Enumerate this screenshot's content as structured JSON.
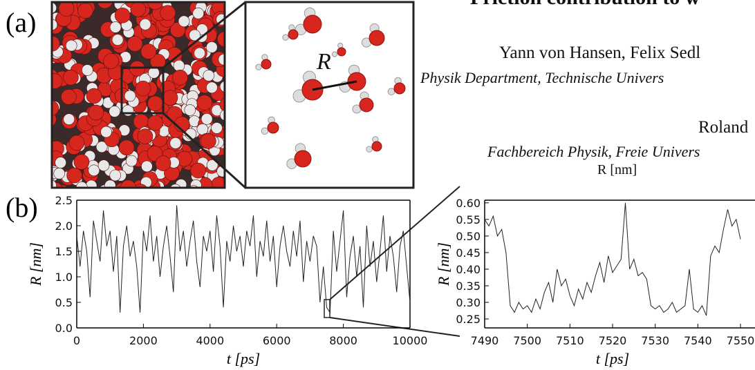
{
  "panel_labels": [
    "(a)",
    "(b)"
  ],
  "figure_a": {
    "distance_label": "R"
  },
  "header": {
    "title": "Friction contribution to w",
    "authors": "Yann von Hansen, Felix Sedl",
    "affiliation_1": "Physik Department, Technische Univers",
    "author_2": "Roland",
    "affiliation_2": "Fachbereich Physik, Freie Univers",
    "stray_label": "R [nm]"
  },
  "chart_data": [
    {
      "type": "line",
      "color": "#222222",
      "x": [
        0,
        100,
        200,
        300,
        400,
        500,
        600,
        700,
        800,
        900,
        1000,
        1100,
        1200,
        1300,
        1400,
        1500,
        1600,
        1700,
        1800,
        1900,
        2000,
        2100,
        2200,
        2300,
        2400,
        2500,
        2600,
        2700,
        2800,
        2900,
        3000,
        3100,
        3200,
        3300,
        3400,
        3500,
        3600,
        3700,
        3800,
        3900,
        4000,
        4100,
        4200,
        4300,
        4400,
        4500,
        4600,
        4700,
        4800,
        4900,
        5000,
        5100,
        5200,
        5300,
        5400,
        5500,
        5600,
        5700,
        5800,
        5900,
        6000,
        6100,
        6200,
        6300,
        6400,
        6500,
        6600,
        6700,
        6800,
        6900,
        7000,
        7100,
        7200,
        7300,
        7400,
        7500,
        7600,
        7700,
        7800,
        7900,
        8000,
        8100,
        8200,
        8300,
        8400,
        8500,
        8600,
        8700,
        8800,
        8900,
        9000,
        9100,
        9200,
        9300,
        9400,
        9500,
        9600,
        9700,
        9800,
        9900,
        10000
      ],
      "values": [
        1.8,
        1.2,
        1.9,
        1.5,
        0.6,
        2.1,
        1.7,
        1.3,
        2.3,
        1.6,
        1.9,
        1.1,
        1.8,
        0.3,
        1.6,
        2.0,
        1.4,
        1.7,
        1.2,
        0.3,
        1.9,
        1.5,
        2.2,
        1.3,
        1.8,
        1.0,
        1.6,
        2.0,
        1.4,
        0.7,
        2.4,
        1.5,
        1.9,
        1.2,
        1.7,
        2.1,
        1.3,
        0.8,
        1.8,
        1.5,
        1.9,
        1.1,
        2.2,
        1.6,
        0.4,
        1.7,
        1.3,
        2.0,
        1.5,
        1.8,
        1.2,
        1.9,
        1.6,
        2.2,
        1.0,
        1.7,
        1.4,
        2.1,
        1.3,
        1.8,
        0.8,
        1.6,
        2.0,
        1.5,
        1.2,
        1.9,
        1.4,
        2.1,
        0.9,
        1.7,
        1.3,
        1.8,
        1.6,
        0.5,
        1.2,
        0.4,
        0.3,
        1.9,
        1.1,
        1.7,
        2.3,
        0.6,
        1.4,
        1.8,
        1.0,
        1.6,
        0.4,
        2.0,
        1.2,
        1.7,
        0.9,
        1.5,
        2.2,
        1.1,
        1.8,
        1.4,
        0.7,
        1.6,
        1.9,
        1.2,
        0.5
      ],
      "xlim": [
        0,
        10000
      ],
      "ylim": [
        0,
        2.5
      ],
      "xticks": [
        0,
        2000,
        4000,
        6000,
        8000,
        10000
      ],
      "yticks": [
        {
          "value": 0,
          "label": "0.0"
        },
        0.5,
        {
          "value": 1,
          "label": "1.0"
        },
        1.5,
        {
          "value": 2,
          "label": "2.0"
        },
        2.5
      ],
      "xlabel": "t [ps]",
      "ylabel": "R [nm]"
    },
    {
      "type": "line",
      "color": "#222222",
      "x": [
        7490,
        7491,
        7492,
        7493,
        7494,
        7495,
        7496,
        7497,
        7498,
        7499,
        7500,
        7501,
        7502,
        7503,
        7504,
        7505,
        7506,
        7507,
        7508,
        7509,
        7510,
        7511,
        7512,
        7513,
        7514,
        7515,
        7516,
        7517,
        7518,
        7519,
        7520,
        7521,
        7522,
        7523,
        7524,
        7525,
        7526,
        7527,
        7528,
        7529,
        7530,
        7531,
        7532,
        7533,
        7534,
        7535,
        7536,
        7537,
        7538,
        7539,
        7540,
        7541,
        7542,
        7543,
        7544,
        7545,
        7546,
        7547,
        7548,
        7549,
        7550
      ],
      "values": [
        0.55,
        0.53,
        0.56,
        0.5,
        0.52,
        0.45,
        0.29,
        0.27,
        0.3,
        0.28,
        0.29,
        0.27,
        0.31,
        0.28,
        0.33,
        0.36,
        0.3,
        0.4,
        0.35,
        0.37,
        0.32,
        0.29,
        0.34,
        0.31,
        0.36,
        0.33,
        0.38,
        0.42,
        0.36,
        0.44,
        0.39,
        0.41,
        0.43,
        0.6,
        0.4,
        0.43,
        0.38,
        0.39,
        0.37,
        0.29,
        0.28,
        0.29,
        0.27,
        0.28,
        0.3,
        0.27,
        0.28,
        0.29,
        0.4,
        0.28,
        0.27,
        0.29,
        0.26,
        0.44,
        0.47,
        0.45,
        0.52,
        0.58,
        0.53,
        0.55,
        0.49
      ],
      "xlim": [
        7490,
        7550
      ],
      "ylim": [
        0.223,
        0.608
      ],
      "xticks": [
        7490,
        7500,
        7510,
        7520,
        7530,
        7540,
        7550
      ],
      "yticks": [
        0.25,
        {
          "value": 0.3,
          "label": "0.30"
        },
        0.35,
        {
          "value": 0.4,
          "label": "0.40"
        },
        0.45,
        {
          "value": 0.5,
          "label": "0.50"
        },
        0.55,
        {
          "value": 0.6,
          "label": "0.60"
        }
      ],
      "xlabel": "t [ps]",
      "ylabel": "R [nm]"
    }
  ]
}
